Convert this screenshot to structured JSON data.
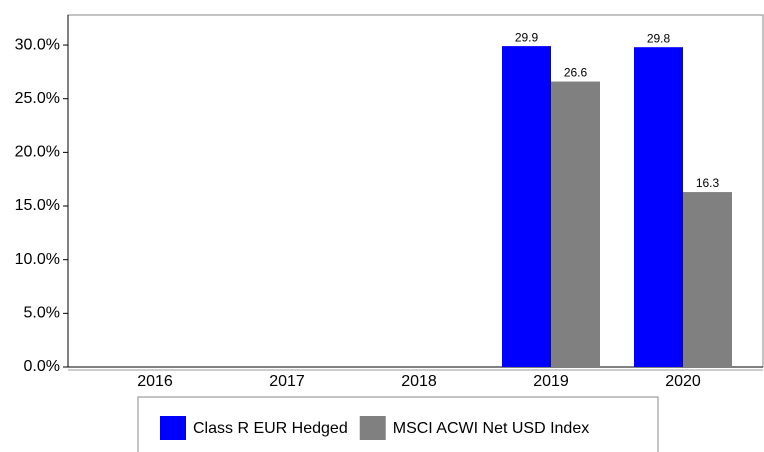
{
  "chart_data": {
    "type": "bar",
    "categories": [
      "2016",
      "2017",
      "2018",
      "2019",
      "2020"
    ],
    "series": [
      {
        "name": "Class R EUR Hedged",
        "color": "#0000ff",
        "values": [
          null,
          null,
          null,
          29.9,
          29.8
        ]
      },
      {
        "name": "MSCI ACWI Net USD Index",
        "color": "#808080",
        "values": [
          null,
          null,
          null,
          26.6,
          16.3
        ]
      }
    ],
    "ylim": [
      0,
      32.8
    ],
    "yticks": [
      {
        "value": 0,
        "label": "0.0%"
      },
      {
        "value": 5,
        "label": "5.0%"
      },
      {
        "value": 10,
        "label": "10.0%"
      },
      {
        "value": 15,
        "label": "15.0%"
      },
      {
        "value": 20,
        "label": "20.0%"
      },
      {
        "value": 25,
        "label": "25.0%"
      },
      {
        "value": 30,
        "label": "30.0%"
      }
    ],
    "legend": "bottom"
  }
}
